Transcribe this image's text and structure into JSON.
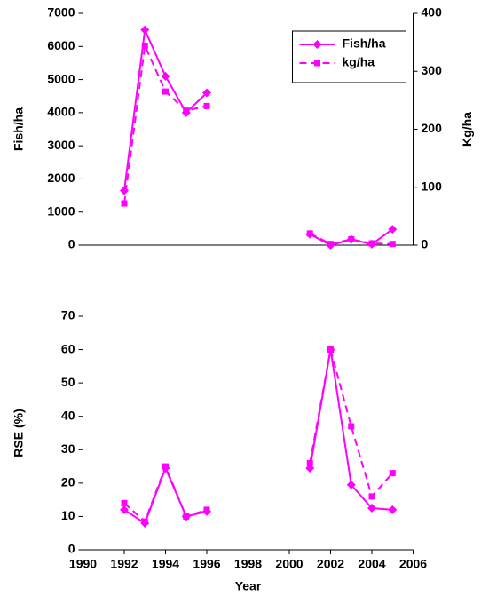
{
  "chart_data": [
    {
      "type": "line",
      "ylabel": "Fish/ha",
      "y2label": "Kg/ha",
      "x": [
        1992,
        1993,
        1994,
        1995,
        1996,
        1997,
        1998,
        1999,
        2000,
        2001,
        2002,
        2003,
        2004,
        2005
      ],
      "xlim": [
        1990,
        2006
      ],
      "ylim": [
        0,
        7000
      ],
      "yticks": [
        0,
        1000,
        2000,
        3000,
        4000,
        5000,
        6000,
        7000
      ],
      "y2lim": [
        0,
        400
      ],
      "y2ticks": [
        0,
        100,
        200,
        300,
        400
      ],
      "legend": "upper right",
      "series": [
        {
          "name": "Fish/ha",
          "color": "#ff00ff",
          "marker": "diamond",
          "line_style": "solid",
          "values": [
            1650,
            6500,
            5100,
            4000,
            4600,
            null,
            null,
            null,
            null,
            330,
            0,
            170,
            30,
            480
          ]
        },
        {
          "name": "kg/ha",
          "color": "#ff00ff",
          "marker": "square",
          "line_style": "dashed",
          "axis": "y2",
          "values": [
            72,
            344,
            265,
            232,
            240,
            null,
            null,
            null,
            null,
            20,
            2,
            10,
            3,
            2
          ]
        }
      ]
    },
    {
      "type": "line",
      "ylabel": "RSE (%)",
      "xlabel": "Year",
      "x": [
        1992,
        1993,
        1994,
        1995,
        1996,
        1997,
        1998,
        1999,
        2000,
        2001,
        2002,
        2003,
        2004,
        2005
      ],
      "xlim": [
        1990,
        2006
      ],
      "xticks": [
        1990,
        1992,
        1994,
        1996,
        1998,
        2000,
        2002,
        2004,
        2006
      ],
      "ylim": [
        0,
        70
      ],
      "yticks": [
        0,
        10,
        20,
        30,
        40,
        50,
        60,
        70
      ],
      "series": [
        {
          "color": "#ff00ff",
          "marker": "diamond",
          "line_style": "solid",
          "values": [
            12,
            8,
            24.5,
            10,
            11.5,
            null,
            null,
            null,
            null,
            24.5,
            60,
            19.5,
            12.5,
            12
          ]
        },
        {
          "color": "#ff00ff",
          "marker": "square",
          "line_style": "dashed",
          "values": [
            14,
            8.5,
            25,
            10,
            12,
            null,
            null,
            null,
            null,
            26,
            60,
            37,
            16,
            23
          ]
        }
      ]
    }
  ]
}
